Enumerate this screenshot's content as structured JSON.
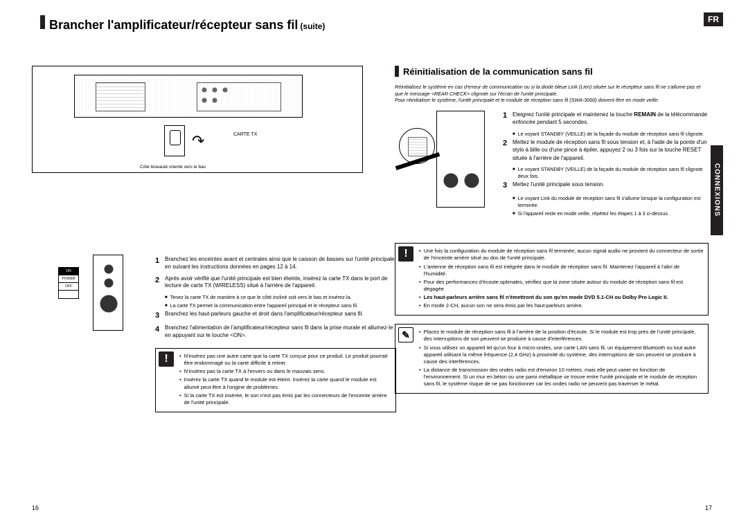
{
  "lang_badge": "FR",
  "side_tab": "CONNEXIONS",
  "title_main": "Brancher l'amplificateur/récepteur sans fil",
  "title_suite": "(suite)",
  "diagram": {
    "tx_label": "CARTE TX",
    "bottom_label": "Côté biseauté orienté vers le bas",
    "switch_on": "ON",
    "switch_power": "POWER",
    "switch_off": "OFF"
  },
  "left_steps": {
    "s1": "Branchez les enceintes avant et centrales ainsi que le caisson de basses sur l'unité principale en suivant les instructions données en pages 12 à 14.",
    "s2": "Après avoir vérifié que l'unité principale est bien éteinte, insérez la carte TX dans le port de lecture de carte TX (WIRELESS) situé à l'arrière de l'appareil.",
    "s2a": "Tenez la carte TX de manière à ce que le côté incliné soit vers le bas et insérez-la.",
    "s2b": "La carte TX permet la communication entre l'appareil principal et le récepteur sans fil.",
    "s3": "Branchez les haut-parleurs gauche et droit dans l'amplificateur/récepteur sans fil.",
    "s4": "Branchez l'alimentation de l'amplificateur/récepteur sans fil dans la prise murale et allumez-le en appuyant sur le touche <ON>."
  },
  "left_note": {
    "n1": "N'insérez pas une autre carte que la carte TX conçue pour ce produit. Le produit pourrait être endommagé ou la carte difficile à retirer.",
    "n2": "N'insérez pas la carte TX à l'envers ou dans le mauvais sens.",
    "n3": "Insérez la carte TX quand le module est éteint. Insérez la carte quand le module est allumé peut être à l'origine de problèmes.",
    "n4": "Si la carte TX est insérée, le son n'est pas émis par les connecteurs de l'enceinte arrière de l'unité principale."
  },
  "right_section": "Réinitialisation de la communication sans fil",
  "right_intro": "Réinitialisez le système en cas d'erreur de communication ou si la diode bleue Link (Lien) située sur le récepteur sans fil ne s'allume pas et que le message <REAR CHECK> clignote sur l'écran de l'unité principale.\nPour réinitialiser le système, l'unité principale et le module de réception sans fil (SWA-3000) doivent être en mode veille.",
  "right_steps": {
    "s1_a": "Eteignez l'unité principale et maintenez la touche ",
    "s1_b": "REMAIN",
    "s1_c": " de la télécommande enfoncée pendant 5 secondes.",
    "s1n": "Le voyant STANDBY (VEILLE) de la façade du module de réception sans fil clignote.",
    "s2": "Mettez le module de réception sans fil sous tension et, à l'aide de la pointe d'un stylo à bille ou d'une pince à épiler, appuyez 2 ou 3 fois sur la touche RESET située à l'arrière de l'appareil.",
    "s2n": "Le voyant STANDBY (VEILLE) de la façade du module de réception sans fil clignote deux fois.",
    "s3": "Mettez l'unité principale sous tension.",
    "s3a": "Le voyant Link du module de réception sans fil s'allume lorsque la configuration est terminée.",
    "s3b": "Si l'appareil reste en mode veille, répétez les étapes 1 à 3 ci-dessus."
  },
  "right_note1": {
    "n1": "Une fois la configuration du module de réception sans fil terminée, aucun signal audio ne provient du connecteur de sortie de l'enceinte arrière situé au dos de l'unité principale.",
    "n2": "L'antenne de réception sans fil est intégrée dans le module de réception sans fil. Maintenez l'appareil à l'abri de l'humidité.",
    "n3": "Pour des performances d'écoute optimales, vérifiez que la zone située autour du module de réception sans fil est dégagée.",
    "n4": "Les haut-parleurs arrière sans fil n'émettront du son qu'en mode DVD 5.1-CH ou Dolby Pro Logic II.",
    "n5": "En mode 2-CH, aucun son ne sera émis par les haut-parleurs arrière."
  },
  "right_note2": {
    "n1": "Placez le module de réception sans fil à l'arrière de la position d'écoute. Si le module est trop près de l'unité principale, des interruptions de son peuvent se produire à cause d'interférences.",
    "n2": "Si vous utilisez un appareil tel qu'un four à micro-ondes, une carte LAN sans fil, un équipement Bluetooth ou tout autre appareil utilisant la même fréquence (2,4 GHz) à proximité du système, des interruptions de son peuvent se produire à cause des interférences.",
    "n3": "La distance de transmission des ondes radio est d'environ 10 mètres, mais elle peut varier en fonction de l'environnement. Si un mur en béton ou une paroi métallique se trouve entre l'unité principale et le module de réception sans fil, le système risque de ne pas fonctionner car les ondes radio ne peuvent pas traverser le métal."
  },
  "page_l": "16",
  "page_r": "17"
}
